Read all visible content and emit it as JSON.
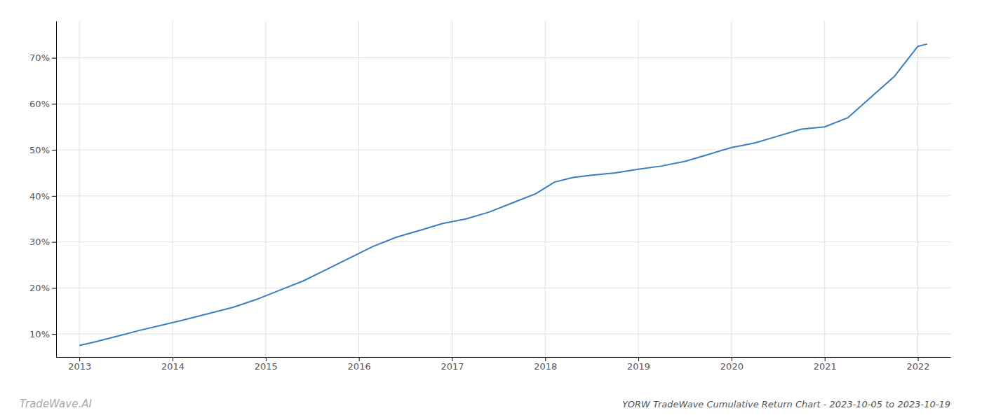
{
  "chart_data": {
    "type": "line",
    "title": "YORW TradeWave Cumulative Return Chart - 2023-10-05 to 2023-10-19",
    "annotations": [
      "TradeWave.AI"
    ],
    "x": [
      2013.0,
      2013.15,
      2013.4,
      2013.65,
      2013.9,
      2014.15,
      2014.4,
      2014.65,
      2014.9,
      2015.15,
      2015.4,
      2015.65,
      2015.9,
      2016.15,
      2016.4,
      2016.65,
      2016.9,
      2017.15,
      2017.4,
      2017.65,
      2017.9,
      2018.1,
      2018.3,
      2018.5,
      2018.75,
      2019.0,
      2019.25,
      2019.5,
      2019.75,
      2020.0,
      2020.25,
      2020.5,
      2020.75,
      2021.0,
      2021.25,
      2021.5,
      2021.75,
      2022.0,
      2022.1
    ],
    "values": [
      7.5,
      8.2,
      9.5,
      10.8,
      12.0,
      13.2,
      14.5,
      15.8,
      17.5,
      19.5,
      21.5,
      24.0,
      26.5,
      29.0,
      31.0,
      32.5,
      34.0,
      35.0,
      36.5,
      38.5,
      40.5,
      43.0,
      44.0,
      44.5,
      45.0,
      45.8,
      46.5,
      47.5,
      49.0,
      50.5,
      51.5,
      53.0,
      54.5,
      55.0,
      57.0,
      61.5,
      66.0,
      72.5,
      73.0
    ],
    "color": "#3a7ebf",
    "xlim": [
      2012.75,
      2022.35
    ],
    "ylim": [
      5,
      78
    ],
    "xticks": [
      2013,
      2014,
      2015,
      2016,
      2017,
      2018,
      2019,
      2020,
      2021,
      2022
    ],
    "yticks": [
      {
        "value": 10,
        "label": "10%"
      },
      {
        "value": 20,
        "label": "20%"
      },
      {
        "value": 30,
        "label": "30%"
      },
      {
        "value": 40,
        "label": "40%"
      },
      {
        "value": 50,
        "label": "50%"
      },
      {
        "value": 60,
        "label": "60%"
      },
      {
        "value": 70,
        "label": "70%"
      }
    ],
    "grid": true
  }
}
